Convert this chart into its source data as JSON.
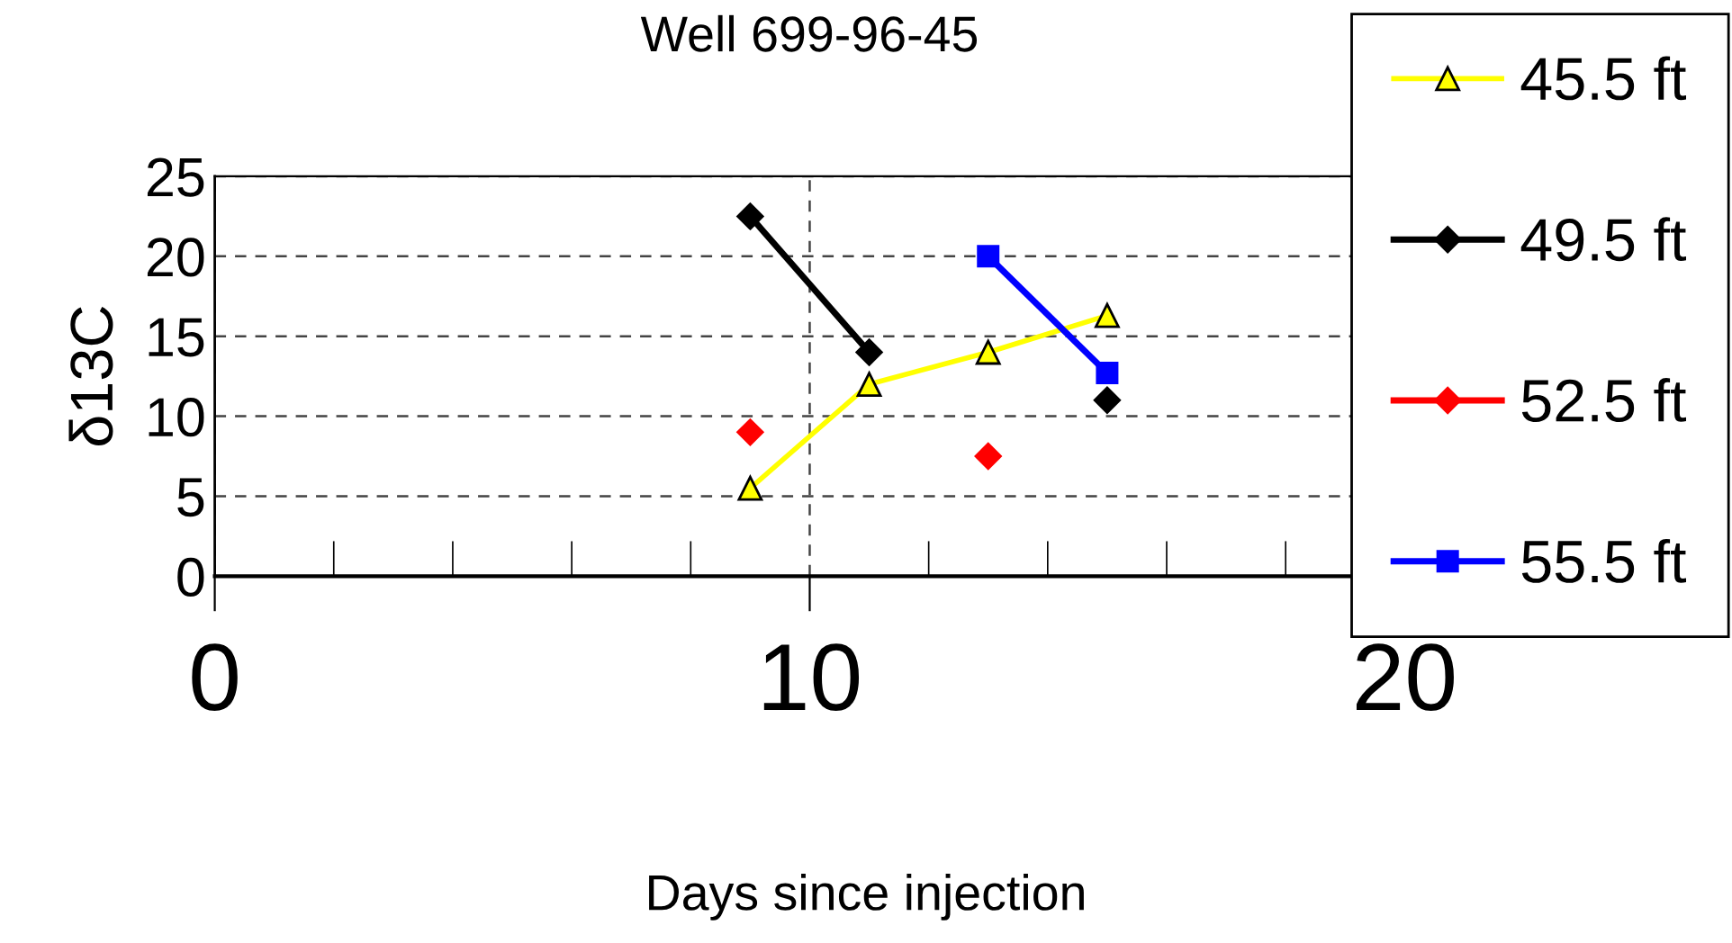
{
  "chart_data": {
    "type": "line",
    "title": "Well 699-96-45",
    "xlabel": "Days since injection",
    "ylabel": "δ13C",
    "x": [
      9,
      11,
      13,
      15
    ],
    "series": [
      {
        "name": "45.5 ft",
        "color": "#ffff00",
        "values": [
          5.5,
          12,
          14,
          16.3
        ],
        "marker": "triangle"
      },
      {
        "name": "49.5 ft",
        "color": "#000000",
        "values": [
          22.5,
          14,
          null,
          11
        ],
        "marker": "diamond"
      },
      {
        "name": "52.5 ft",
        "color": "#ff0000",
        "values": [
          9,
          null,
          7.5,
          null
        ],
        "marker": "diamond",
        "type": "scatter"
      },
      {
        "name": "55.5 ft",
        "color": "#0000ff",
        "values": [
          null,
          null,
          20,
          12.7
        ],
        "marker": "square"
      }
    ],
    "xlim": [
      0,
      20
    ],
    "xticks": [
      0,
      10,
      20
    ],
    "ylim": [
      0,
      25
    ],
    "yticks": [
      0,
      5,
      10,
      15,
      20,
      25
    ],
    "grid": true,
    "legend": "right"
  }
}
